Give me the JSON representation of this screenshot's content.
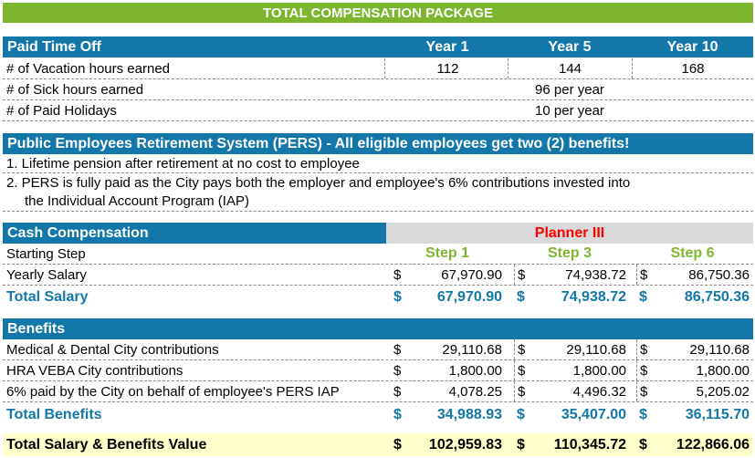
{
  "title": "TOTAL COMPENSATION PACKAGE",
  "pto": {
    "heading": "Paid Time Off",
    "col1": "Year 1",
    "col2": "Year 5",
    "col3": "Year 10",
    "vacation_label": "# of Vacation hours earned",
    "vacation": [
      "112",
      "144",
      "168"
    ],
    "sick_label": "# of Sick hours earned",
    "sick": "96 per year",
    "holidays_label": "# of Paid Holidays",
    "holidays": "10 per year"
  },
  "pers": {
    "heading": "Public Employees Retirement System (PERS) - All eligible employees get two (2) benefits!",
    "item1": "1. Lifetime pension after retirement at no cost to employee",
    "item2a": "2.  PERS is fully paid as the City pays both the employer and employee's 6% contributions invested into",
    "item2b": "the Individual Account Program (IAP)"
  },
  "cash": {
    "heading": "Cash Compensation",
    "position": "Planner III",
    "starting_label": "Starting Step",
    "steps": [
      "Step 1",
      "Step 3",
      "Step 6"
    ],
    "salary_label": "Yearly Salary",
    "salary": [
      "67,970.90",
      "74,938.72",
      "86,750.36"
    ],
    "total_label": "Total Salary",
    "total": [
      "67,970.90",
      "74,938.72",
      "86,750.36"
    ]
  },
  "benefits": {
    "heading": "Benefits",
    "medical_label": "Medical & Dental City contributions",
    "medical": [
      "29,110.68",
      "29,110.68",
      "29,110.68"
    ],
    "hra_label": "HRA VEBA City contributions",
    "hra": [
      "1,800.00",
      "1,800.00",
      "1,800.00"
    ],
    "pers_label": "6% paid by the City on behalf of employee's PERS IAP",
    "pers": [
      "4,078.25",
      "4,496.32",
      "5,205.02"
    ],
    "total_label": "Total Benefits",
    "total": [
      "34,988.93",
      "35,407.00",
      "36,115.70"
    ]
  },
  "grand": {
    "label": "Total Salary & Benefits Value",
    "total": [
      "102,959.83",
      "110,345.72",
      "122,866.06"
    ]
  },
  "currency": "$"
}
